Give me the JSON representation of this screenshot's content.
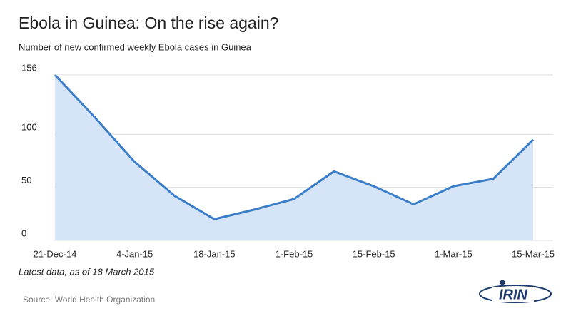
{
  "chart_data": {
    "type": "area",
    "title": "Ebola in Guinea: On the rise again?",
    "subtitle": "Number of new confirmed weekly Ebola cases in Guinea",
    "note": "Latest data, as of 18 March 2015",
    "source": "Source: World Health Organization",
    "logo": "IRIN",
    "categories": [
      "21-Dec-14",
      null,
      "4-Jan-15",
      null,
      "18-Jan-15",
      null,
      "1-Feb-15",
      null,
      "15-Feb-15",
      null,
      "1-Mar-15",
      null,
      "15-Mar-15"
    ],
    "values": [
      156,
      116,
      74,
      42,
      20,
      29,
      39,
      65,
      51,
      34,
      51,
      58,
      95
    ],
    "color": "#3a7dc9",
    "fill_color": "#d5e5f7",
    "ylim": [
      0,
      156
    ],
    "yticks": [
      0,
      50,
      100,
      156
    ],
    "grid": true
  }
}
